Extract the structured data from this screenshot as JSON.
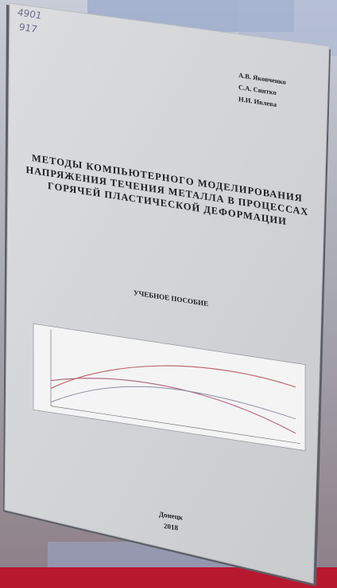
{
  "handwritten": [
    "4901",
    "917"
  ],
  "authors": [
    "А.В. Яковченко",
    "С.А. Синтко",
    "Н.И. Ивлева"
  ],
  "title": [
    "МЕТОДЫ КОМПЬЮТЕРНОГО МОДЕЛИРОВАНИЯ",
    "НАПРЯЖЕНИЯ ТЕЧЕНИЯ МЕТАЛЛА В ПРОЦЕССАХ",
    "ГОРЯЧЕЙ ПЛАСТИЧЕСКОЙ ДЕФОРМАЦИИ"
  ],
  "subtitle": "УЧЕБНОЕ ПОСОБИЕ",
  "city": "Донецк",
  "year": "2018"
}
